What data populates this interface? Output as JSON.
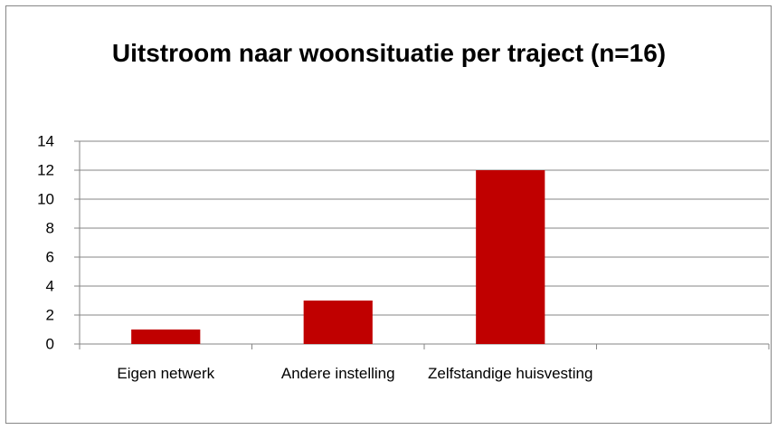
{
  "chart_data": {
    "type": "bar",
    "title": "Uitstroom naar woonsituatie per traject (n=16)",
    "categories": [
      "Eigen netwerk",
      "Andere instelling",
      "Zelfstandige huisvesting",
      null
    ],
    "values": [
      1,
      3,
      12,
      null
    ],
    "color": "#c00000",
    "ylim": [
      0,
      14
    ],
    "yticks": [
      0,
      2,
      4,
      6,
      8,
      10,
      12,
      14
    ],
    "grid": true
  }
}
